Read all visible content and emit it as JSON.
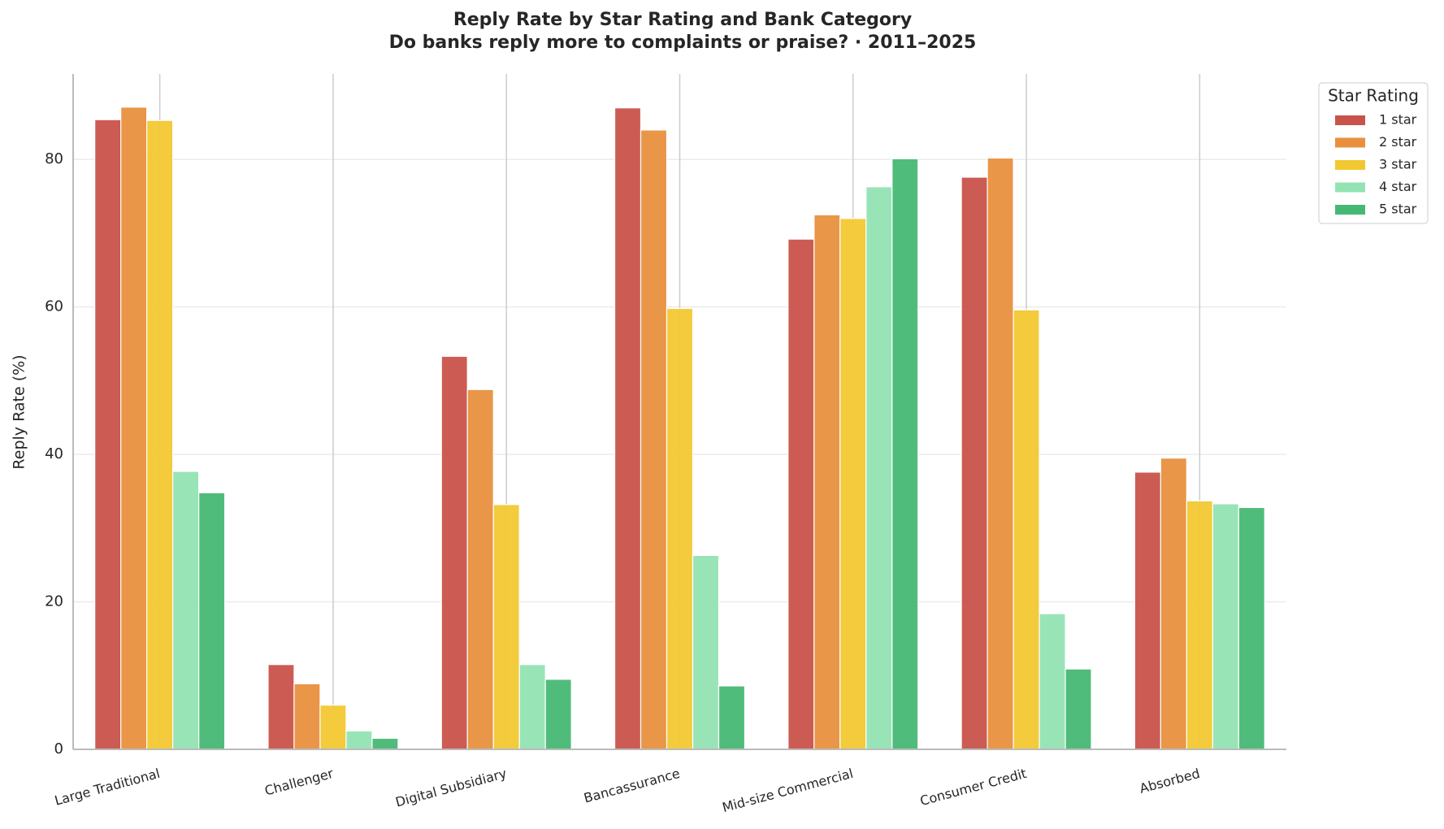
{
  "chart_data": {
    "type": "bar",
    "title": "Reply Rate by Star Rating and Bank Category",
    "subtitle": "Do banks reply more to complaints or praise? · 2011–2025",
    "y_label": "Reply Rate (%)",
    "categories": [
      "Large Traditional",
      "Challenger",
      "Digital Subsidiary",
      "Bancassurance",
      "Mid-size Commercial",
      "Consumer Credit",
      "Absorbed"
    ],
    "series": [
      {
        "name": "1 star",
        "color": "#c9534a",
        "values": [
          85.4,
          11.5,
          53.3,
          87.0,
          69.2,
          77.6,
          37.6
        ]
      },
      {
        "name": "2 star",
        "color": "#e8903e",
        "values": [
          87.1,
          8.9,
          48.8,
          84.0,
          72.5,
          80.2,
          39.5
        ]
      },
      {
        "name": "3 star",
        "color": "#f2c831",
        "values": [
          85.3,
          6.0,
          33.2,
          59.8,
          72.0,
          59.6,
          33.7
        ]
      },
      {
        "name": "4 star",
        "color": "#93e3b3",
        "values": [
          37.7,
          2.5,
          11.5,
          26.3,
          76.3,
          18.4,
          33.3
        ]
      },
      {
        "name": "5 star",
        "color": "#47b874",
        "values": [
          34.8,
          1.5,
          9.5,
          8.6,
          80.1,
          10.9,
          32.8
        ]
      }
    ],
    "legend_title": "Star Rating",
    "legend": "outside-right",
    "ylim": [
      0,
      91.6
    ],
    "yticks": [
      0,
      20,
      40,
      60,
      80
    ],
    "grid": true
  }
}
